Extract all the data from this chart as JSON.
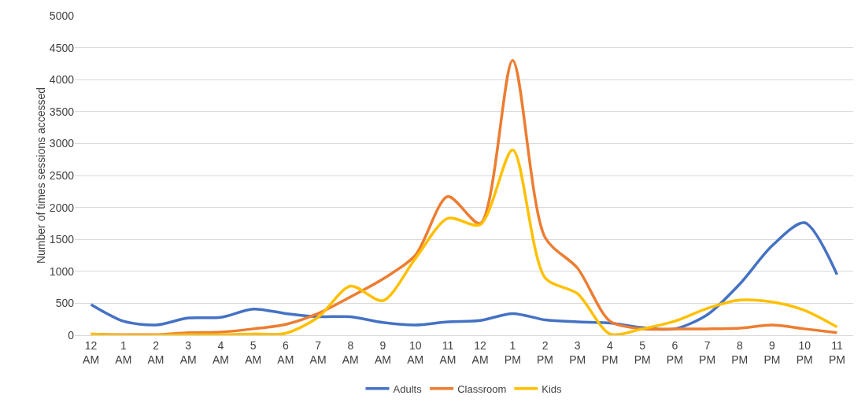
{
  "chart_data": {
    "type": "line",
    "ylabel": "Number of times sessions accessed",
    "categories": [
      "12 AM",
      "1 AM",
      "2 AM",
      "3 AM",
      "4 AM",
      "5 AM",
      "6 AM",
      "7 AM",
      "8 AM",
      "9 AM",
      "10 AM",
      "11 AM",
      "12 AM",
      "1 PM",
      "2 PM",
      "3 PM",
      "4 PM",
      "5 PM",
      "6 PM",
      "7 PM",
      "8 PM",
      "9 PM",
      "10 PM",
      "11 PM"
    ],
    "series": [
      {
        "name": "Adults",
        "color": "#4472c4",
        "values": [
          480,
          220,
          160,
          270,
          280,
          410,
          340,
          290,
          290,
          200,
          160,
          210,
          230,
          340,
          240,
          210,
          190,
          120,
          100,
          320,
          800,
          1400,
          1760,
          950
        ]
      },
      {
        "name": "Classroom",
        "color": "#ed7d31",
        "values": [
          20,
          10,
          10,
          40,
          50,
          100,
          170,
          340,
          600,
          880,
          1250,
          2170,
          1750,
          4300,
          1530,
          1050,
          220,
          100,
          100,
          100,
          110,
          160,
          100,
          40
        ]
      },
      {
        "name": "Kids",
        "color": "#ffc000",
        "values": [
          20,
          0,
          0,
          10,
          10,
          20,
          30,
          280,
          770,
          540,
          1200,
          1830,
          1730,
          2900,
          900,
          650,
          20,
          100,
          220,
          420,
          550,
          520,
          390,
          130
        ]
      }
    ],
    "ylim": [
      0,
      5000
    ],
    "yticks": [
      0,
      500,
      1000,
      1500,
      2000,
      2500,
      3000,
      3500,
      4000,
      4500,
      5000
    ],
    "grid": "y",
    "legend": "bottom",
    "marker": "none",
    "line_style": "solid"
  }
}
